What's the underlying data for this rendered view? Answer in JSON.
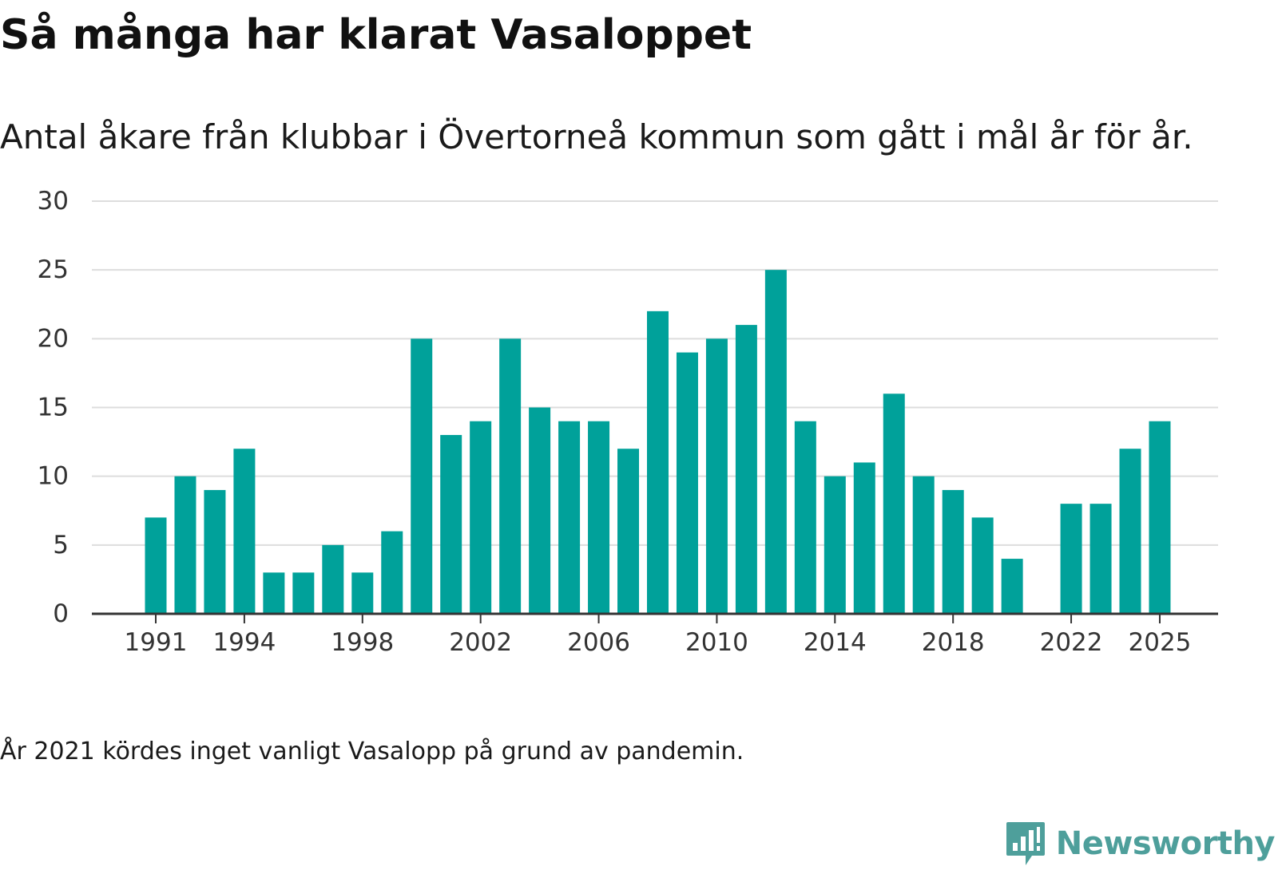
{
  "title": "Så många har klarat Vasaloppet",
  "subtitle": "Antal åkare från klubbar i Övertorneå kommun som gått i mål år för år.",
  "note": "År 2021 kördes inget vanligt Vasalopp på grund av pandemin.",
  "brand": {
    "name": "Newsworthy",
    "color": "#4e9f9b",
    "icon": "newsworthy-logo-icon"
  },
  "colors": {
    "bar": "#00a19a",
    "grid": "#dddddd",
    "axis": "#333333",
    "tick_text": "#333333"
  },
  "chart_data": {
    "type": "bar",
    "title": "Så många har klarat Vasaloppet",
    "xlabel": "",
    "ylabel": "",
    "ylim": [
      0,
      30
    ],
    "yticks": [
      0,
      5,
      10,
      15,
      20,
      25,
      30
    ],
    "xticks": [
      1991,
      1994,
      1998,
      2002,
      2006,
      2010,
      2014,
      2018,
      2022,
      2025
    ],
    "grid": true,
    "categories": [
      1991,
      1992,
      1993,
      1994,
      1995,
      1996,
      1997,
      1998,
      1999,
      2000,
      2001,
      2002,
      2003,
      2004,
      2005,
      2006,
      2007,
      2008,
      2009,
      2010,
      2011,
      2012,
      2013,
      2014,
      2015,
      2016,
      2017,
      2018,
      2019,
      2020,
      2021,
      2022,
      2023,
      2024,
      2025
    ],
    "values": [
      7,
      10,
      9,
      12,
      3,
      3,
      5,
      3,
      6,
      20,
      13,
      14,
      20,
      15,
      14,
      14,
      12,
      22,
      19,
      20,
      21,
      25,
      14,
      10,
      11,
      16,
      10,
      9,
      7,
      4,
      null,
      8,
      8,
      12,
      14
    ]
  }
}
